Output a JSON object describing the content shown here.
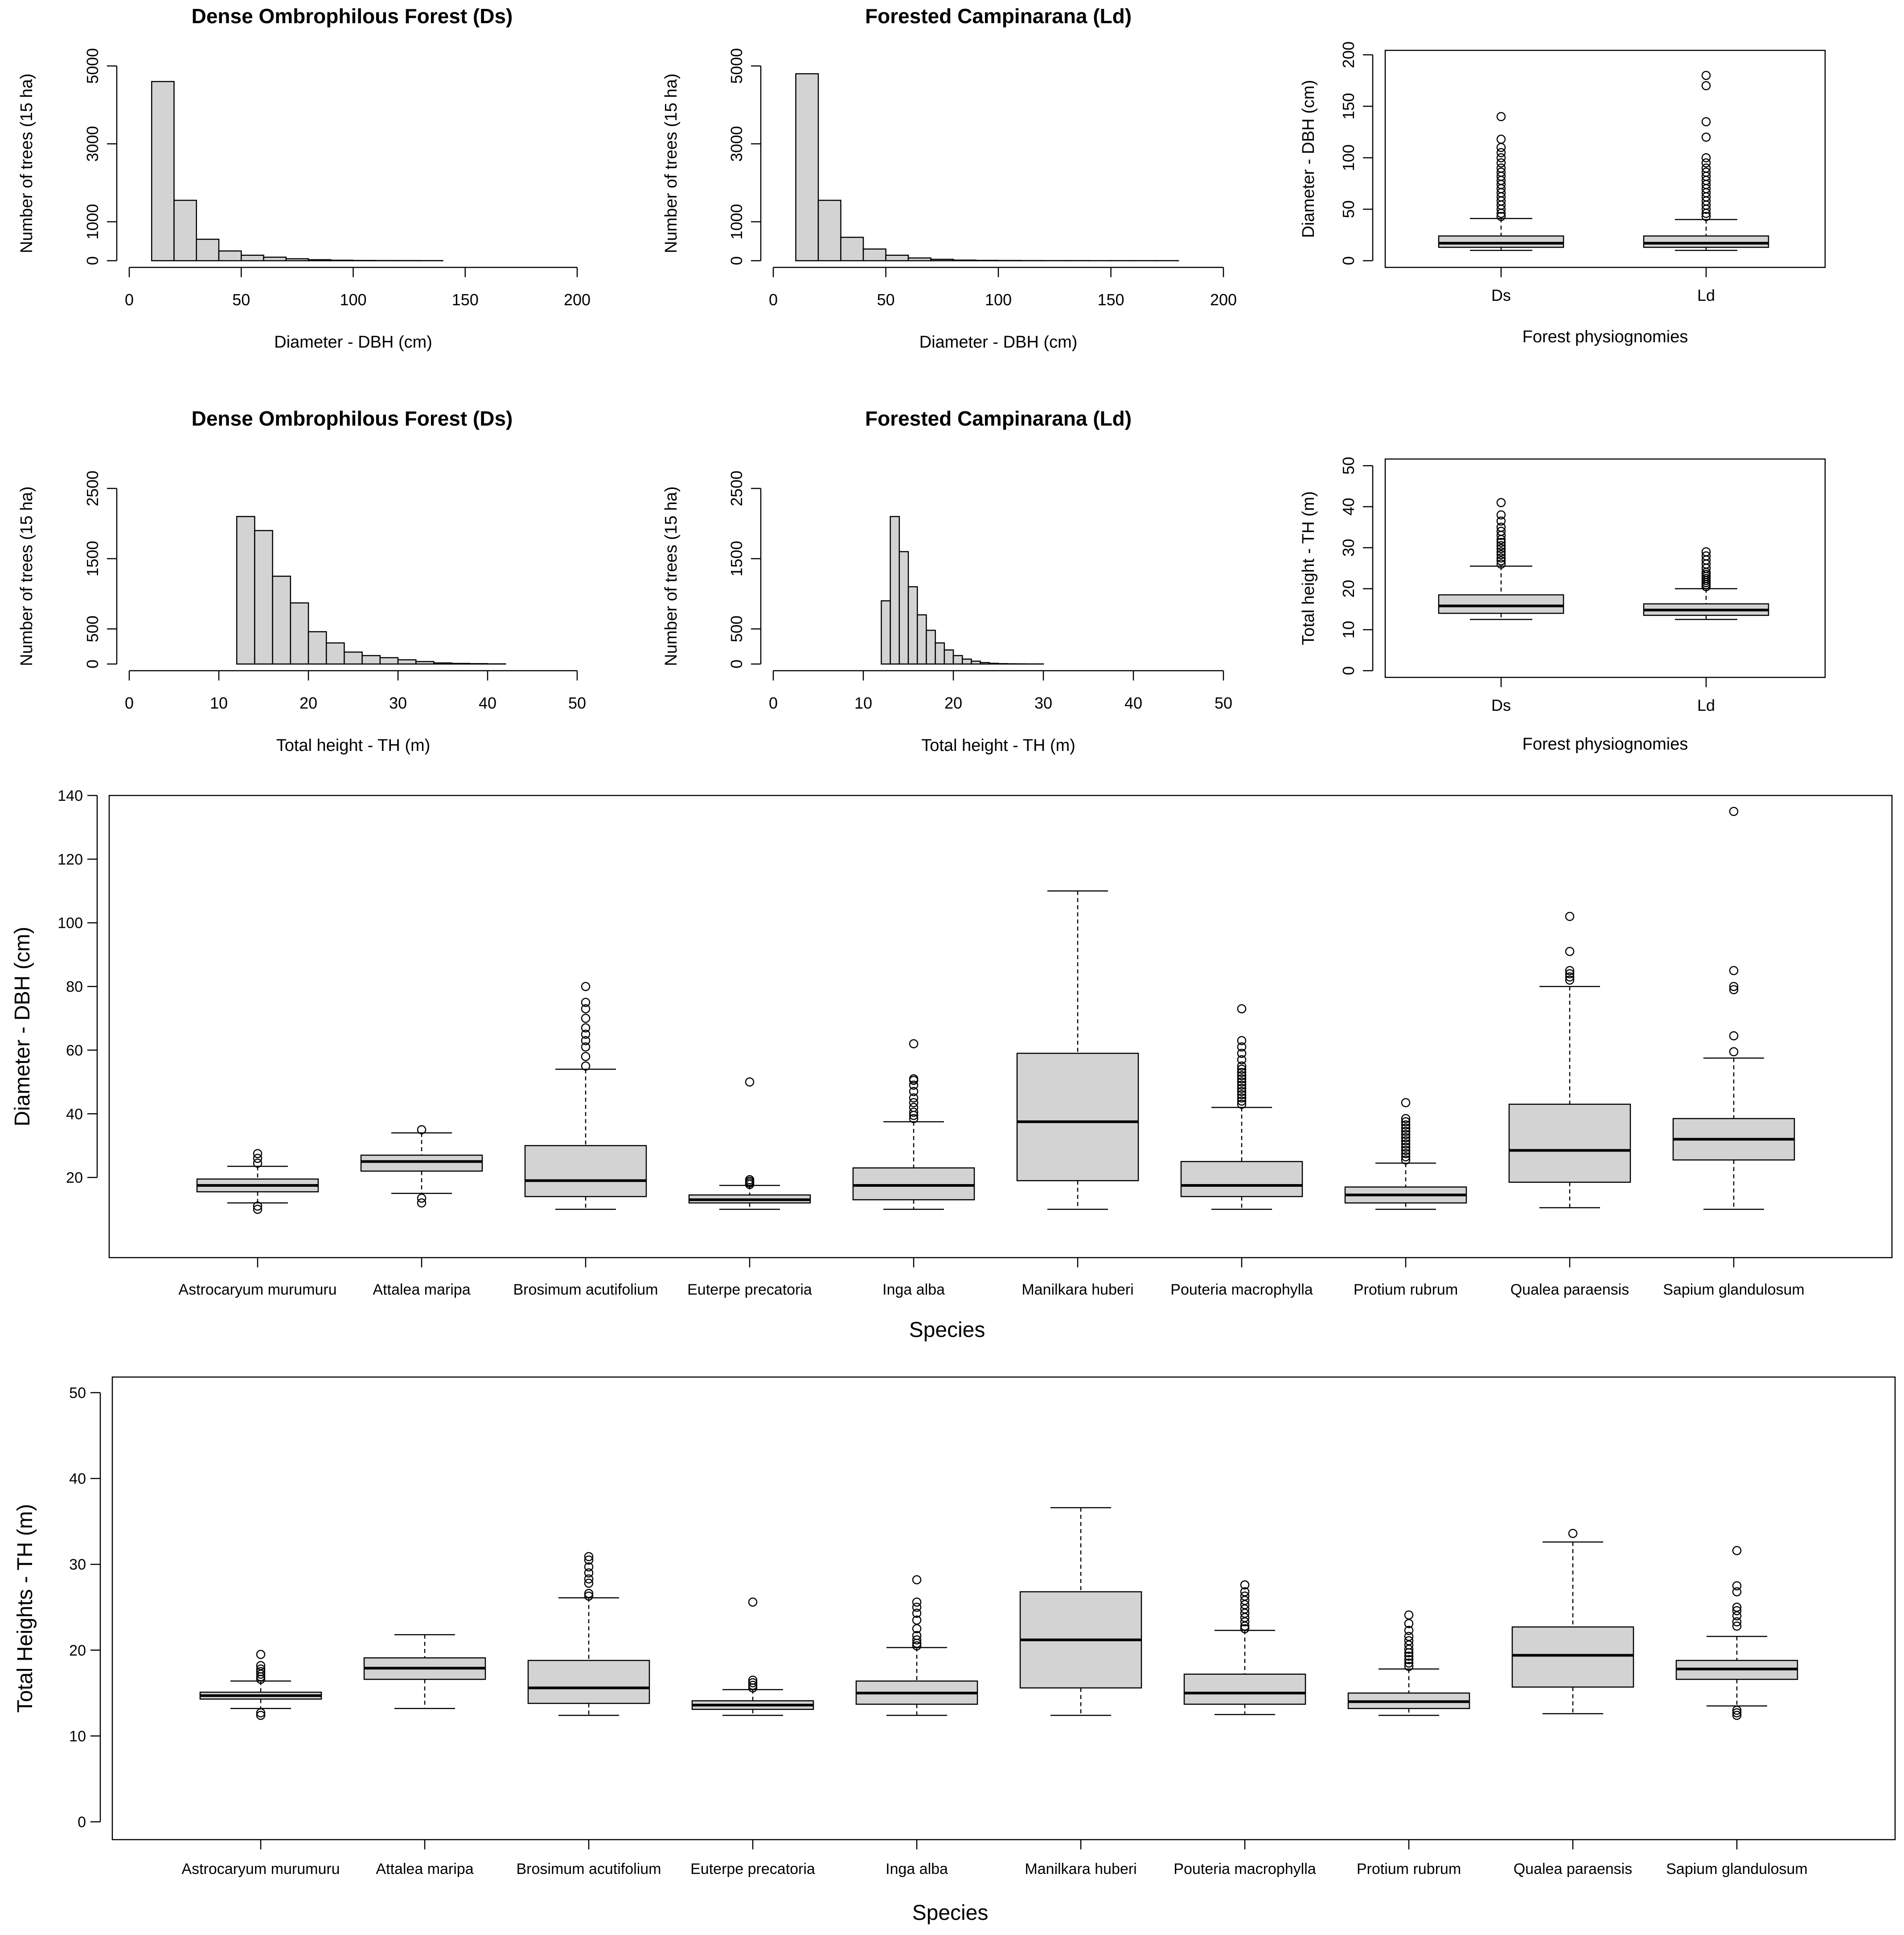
{
  "chart_data": [
    {
      "id": "hist_dbh_ds",
      "type": "bar",
      "subtype": "histogram",
      "title": "Dense Ombrophilous Forest (Ds)",
      "xlabel": "Diameter - DBH (cm)",
      "ylabel": "Number of trees (15 ha)",
      "xlim": [
        0,
        200
      ],
      "ylim": [
        0,
        5000
      ],
      "xticks": [
        0,
        50,
        100,
        150,
        200
      ],
      "yticks": [
        0,
        1000,
        3000,
        5000
      ],
      "bin_width": 10,
      "bin_start": 10,
      "values": [
        4600,
        1550,
        550,
        250,
        140,
        90,
        50,
        25,
        12,
        6,
        4,
        3,
        2
      ]
    },
    {
      "id": "hist_dbh_ld",
      "type": "bar",
      "subtype": "histogram",
      "title": "Forested Campinarana (Ld)",
      "xlabel": "Diameter - DBH (cm)",
      "ylabel": "Number of trees (15 ha)",
      "xlim": [
        0,
        200
      ],
      "ylim": [
        0,
        5000
      ],
      "xticks": [
        0,
        50,
        100,
        150,
        200
      ],
      "yticks": [
        0,
        1000,
        3000,
        5000
      ],
      "bin_width": 10,
      "bin_start": 10,
      "values": [
        4800,
        1550,
        600,
        300,
        140,
        70,
        35,
        15,
        8,
        5,
        3,
        2,
        2,
        1,
        1,
        1,
        1
      ]
    },
    {
      "id": "box_dbh_physio",
      "type": "box",
      "xlabel": "Forest physiognomies",
      "ylabel": "Diameter - DBH (cm)",
      "ylim": [
        0,
        200
      ],
      "yticks": [
        0,
        50,
        100,
        150,
        200
      ],
      "categories": [
        "Ds",
        "Ld"
      ],
      "boxes": [
        {
          "min": 10,
          "q1": 13,
          "median": 17,
          "q3": 24,
          "max": 41,
          "outliers": [
            43,
            46,
            50,
            54,
            58,
            62,
            66,
            70,
            74,
            78,
            82,
            86,
            90,
            95,
            100,
            105,
            110,
            118,
            140
          ]
        },
        {
          "min": 10,
          "q1": 13,
          "median": 17,
          "q3": 24,
          "max": 40,
          "outliers": [
            43,
            46,
            50,
            54,
            58,
            62,
            66,
            70,
            74,
            78,
            82,
            86,
            90,
            95,
            100,
            120,
            135,
            170,
            180
          ]
        }
      ]
    },
    {
      "id": "hist_th_ds",
      "type": "bar",
      "subtype": "histogram",
      "title": "Dense Ombrophilous Forest (Ds)",
      "xlabel": "Total height - TH (m)",
      "ylabel": "Number of trees (15 ha)",
      "xlim": [
        0,
        50
      ],
      "ylim": [
        0,
        2500
      ],
      "xticks": [
        0,
        10,
        20,
        30,
        40,
        50
      ],
      "yticks": [
        0,
        500,
        1500,
        2500
      ],
      "bin_width": 2,
      "bin_start": 12,
      "values": [
        2100,
        1900,
        1250,
        870,
        460,
        300,
        170,
        120,
        90,
        60,
        35,
        15,
        8,
        5,
        2
      ]
    },
    {
      "id": "hist_th_ld",
      "type": "bar",
      "subtype": "histogram",
      "title": "Forested Campinarana (Ld)",
      "xlabel": "Total height - TH (m)",
      "ylabel": "Number of trees (15 ha)",
      "xlim": [
        0,
        50
      ],
      "ylim": [
        0,
        2500
      ],
      "xticks": [
        0,
        10,
        20,
        30,
        40,
        50
      ],
      "yticks": [
        0,
        500,
        1500,
        2500
      ],
      "bin_width": 1,
      "bin_start": 12,
      "values": [
        900,
        2100,
        1600,
        1100,
        700,
        480,
        300,
        200,
        120,
        70,
        40,
        20,
        10,
        5,
        3,
        2,
        1,
        1
      ]
    },
    {
      "id": "box_th_physio",
      "type": "box",
      "xlabel": "Forest physiognomies",
      "ylabel": "Total height - TH (m)",
      "ylim": [
        0,
        50
      ],
      "yticks": [
        0,
        10,
        20,
        30,
        40,
        50
      ],
      "categories": [
        "Ds",
        "Ld"
      ],
      "boxes": [
        {
          "min": 12.5,
          "q1": 14,
          "median": 15.8,
          "q3": 18.5,
          "max": 25.5,
          "outliers": [
            26,
            26.8,
            27.5,
            28.3,
            29,
            29.8,
            30.5,
            31.3,
            32,
            33,
            34,
            35,
            36.5,
            38,
            41
          ]
        },
        {
          "min": 12.5,
          "q1": 13.5,
          "median": 14.8,
          "q3": 16.3,
          "max": 20,
          "outliers": [
            20.5,
            21,
            21.5,
            22,
            22.5,
            23,
            23.5,
            24,
            25,
            26,
            27,
            28,
            29
          ]
        }
      ]
    },
    {
      "id": "box_dbh_species",
      "type": "box",
      "xlabel": "Species",
      "ylabel": "Diameter - DBH (cm)",
      "ylim": [
        0,
        140
      ],
      "yticks": [
        20,
        40,
        60,
        80,
        100,
        120,
        140
      ],
      "categories": [
        "Astrocaryum murumuru",
        "Attalea maripa",
        "Brosimum acutifolium",
        "Euterpe precatoria",
        "Inga alba",
        "Manilkara huberi",
        "Pouteria macrophylla",
        "Protium rubrum",
        "Qualea paraensis",
        "Sapium glandulosum"
      ],
      "boxes": [
        {
          "min": 12,
          "q1": 15.5,
          "median": 17.5,
          "q3": 19.5,
          "max": 23.5,
          "outliers": [
            10,
            11,
            24.5,
            26,
            27.5
          ]
        },
        {
          "min": 15,
          "q1": 22,
          "median": 25,
          "q3": 27,
          "max": 34,
          "outliers": [
            12,
            13.5,
            35
          ]
        },
        {
          "min": 10,
          "q1": 14,
          "median": 19,
          "q3": 30,
          "max": 54,
          "outliers": [
            55,
            58,
            61,
            63,
            65,
            67,
            70,
            73,
            75,
            80
          ]
        },
        {
          "min": 10,
          "q1": 12,
          "median": 13,
          "q3": 14.5,
          "max": 17.5,
          "outliers": [
            17.8,
            18.3,
            18.8,
            19.3,
            50
          ]
        },
        {
          "min": 10,
          "q1": 13,
          "median": 17.5,
          "q3": 23,
          "max": 37.5,
          "outliers": [
            38.5,
            39.5,
            40.5,
            42,
            43.5,
            45,
            47,
            49,
            50.5,
            51,
            62
          ]
        },
        {
          "min": 10,
          "q1": 19,
          "median": 37.5,
          "q3": 59,
          "max": 110,
          "outliers": []
        },
        {
          "min": 10,
          "q1": 14,
          "median": 17.5,
          "q3": 25,
          "max": 42,
          "outliers": [
            43,
            44,
            45,
            46,
            47,
            48,
            49,
            50,
            51,
            52,
            53,
            54,
            55,
            57,
            59,
            61,
            63,
            73
          ]
        },
        {
          "min": 10,
          "q1": 12,
          "median": 14.5,
          "q3": 17,
          "max": 24.5,
          "outliers": [
            25.5,
            26.5,
            27.5,
            28.5,
            29.5,
            30.5,
            31.5,
            32.5,
            33.5,
            34.5,
            35.5,
            36.5,
            37.5,
            38.5,
            43.5
          ]
        },
        {
          "min": 10.5,
          "q1": 18.5,
          "median": 28.5,
          "q3": 43,
          "max": 80,
          "outliers": [
            82,
            83,
            84,
            85,
            91,
            102
          ]
        },
        {
          "min": 10,
          "q1": 25.5,
          "median": 32,
          "q3": 38.5,
          "max": 57.5,
          "outliers": [
            59.5,
            64.5,
            79,
            80,
            85,
            135
          ]
        }
      ]
    },
    {
      "id": "box_th_species",
      "type": "box",
      "xlabel": "Species",
      "ylabel": "Total Heights - TH (m)",
      "ylim": [
        0,
        50
      ],
      "yticks": [
        0,
        10,
        20,
        30,
        40,
        50
      ],
      "categories": [
        "Astrocaryum murumuru",
        "Attalea maripa",
        "Brosimum acutifolium",
        "Euterpe precatoria",
        "Inga alba",
        "Manilkara huberi",
        "Pouteria macrophylla",
        "Protium rubrum",
        "Qualea paraensis",
        "Sapium glandulosum"
      ],
      "boxes": [
        {
          "min": 13.2,
          "q1": 14.3,
          "median": 14.7,
          "q3": 15.1,
          "max": 16.4,
          "outliers": [
            12.4,
            12.7,
            16.6,
            16.9,
            17.2,
            17.5,
            17.8,
            18.2,
            19.5
          ]
        },
        {
          "min": 13.2,
          "q1": 16.6,
          "median": 17.9,
          "q3": 19.1,
          "max": 21.8,
          "outliers": []
        },
        {
          "min": 12.4,
          "q1": 13.8,
          "median": 15.6,
          "q3": 18.8,
          "max": 26.1,
          "outliers": [
            26.3,
            26.6,
            27.8,
            28.3,
            29,
            29.7,
            30.5,
            30.9
          ]
        },
        {
          "min": 12.4,
          "q1": 13.1,
          "median": 13.6,
          "q3": 14.1,
          "max": 15.4,
          "outliers": [
            15.6,
            15.9,
            16.2,
            16.5,
            25.6
          ]
        },
        {
          "min": 12.4,
          "q1": 13.7,
          "median": 15,
          "q3": 16.4,
          "max": 20.3,
          "outliers": [
            20.5,
            20.8,
            21.2,
            21.7,
            22.5,
            23.5,
            24.3,
            25,
            25.6,
            28.2
          ]
        },
        {
          "min": 12.4,
          "q1": 15.6,
          "median": 21.2,
          "q3": 26.8,
          "max": 36.6,
          "outliers": []
        },
        {
          "min": 12.5,
          "q1": 13.7,
          "median": 15,
          "q3": 17.2,
          "max": 22.3,
          "outliers": [
            22.5,
            22.8,
            23.3,
            23.8,
            24.3,
            24.8,
            25.3,
            25.8,
            26.3,
            26.8,
            27.6
          ]
        },
        {
          "min": 12.4,
          "q1": 13.2,
          "median": 14,
          "q3": 15,
          "max": 17.8,
          "outliers": [
            18.1,
            18.5,
            18.9,
            19.3,
            19.7,
            20.1,
            20.6,
            21.1,
            21.6,
            22.3,
            23.1,
            24.1
          ]
        },
        {
          "min": 12.6,
          "q1": 15.7,
          "median": 19.4,
          "q3": 22.7,
          "max": 32.6,
          "outliers": [
            33.6
          ]
        },
        {
          "min": 13.5,
          "q1": 16.6,
          "median": 17.8,
          "q3": 18.8,
          "max": 21.6,
          "outliers": [
            12.4,
            12.7,
            13,
            22.8,
            23.3,
            24,
            24.6,
            25,
            26.8,
            27.5,
            31.6
          ]
        }
      ]
    }
  ]
}
